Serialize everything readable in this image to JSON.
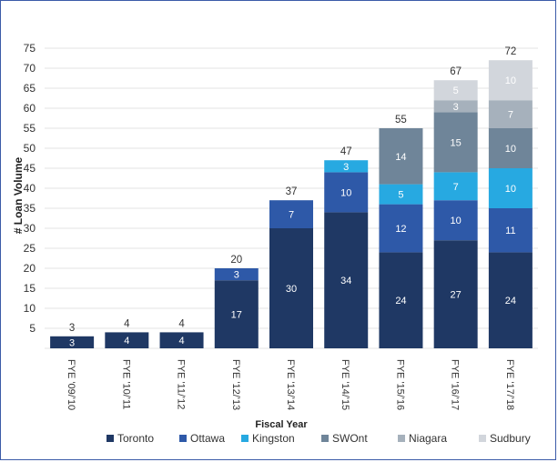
{
  "chart_data": {
    "type": "bar",
    "stacked": true,
    "title": "",
    "xlabel": "Fiscal Year",
    "ylabel": "# Loan Volume",
    "ylim": [
      0,
      75
    ],
    "yticks": [
      "",
      "5",
      "10",
      "15",
      "20",
      "25",
      "30",
      "35",
      "40",
      "45",
      "50",
      "55",
      "60",
      "65",
      "70",
      "75"
    ],
    "grid": true,
    "legend_position": "bottom",
    "categories": [
      "FYE '09/'10",
      "FYE '10/'11",
      "FYE '11/'12",
      "FYE '12/'13",
      "FYE '13/'14",
      "FYE '14/'15",
      "FYE '15/'16",
      "FYE '16/'17",
      "FYE '17/'18"
    ],
    "series": [
      {
        "name": "Toronto",
        "color": "#1f3864",
        "values": [
          3,
          4,
          4,
          17,
          30,
          34,
          24,
          27,
          24
        ]
      },
      {
        "name": "Ottawa",
        "color": "#2e59a8",
        "values": [
          0,
          0,
          0,
          3,
          7,
          10,
          12,
          10,
          11
        ]
      },
      {
        "name": "Kingston",
        "color": "#27a9e1",
        "values": [
          0,
          0,
          0,
          0,
          0,
          3,
          5,
          7,
          10
        ]
      },
      {
        "name": "SWOnt",
        "color": "#6f8599",
        "values": [
          0,
          0,
          0,
          0,
          0,
          0,
          14,
          15,
          10
        ]
      },
      {
        "name": "Niagara",
        "color": "#a6b1bc",
        "values": [
          0,
          0,
          0,
          0,
          0,
          0,
          0,
          3,
          7
        ]
      },
      {
        "name": "Sudbury",
        "color": "#d2d6dc",
        "values": [
          0,
          0,
          0,
          0,
          0,
          0,
          0,
          5,
          10
        ]
      }
    ],
    "segment_labels": [
      [
        "3",
        "",
        "",
        "",
        "",
        ""
      ],
      [
        "4",
        "",
        "",
        "",
        "",
        ""
      ],
      [
        "4",
        "",
        "",
        "",
        "",
        ""
      ],
      [
        "17",
        "3",
        "",
        "",
        "",
        ""
      ],
      [
        "30",
        "7",
        "",
        "",
        "",
        ""
      ],
      [
        "34",
        "10",
        "3",
        "",
        "",
        ""
      ],
      [
        "24",
        "12",
        "5",
        "14",
        "",
        ""
      ],
      [
        "27",
        "10",
        "7",
        "15",
        "3",
        "5"
      ],
      [
        "24",
        "11",
        "10",
        "10",
        "7",
        "10"
      ]
    ],
    "totals": [
      "3",
      "4",
      "4",
      "20",
      "37",
      "47",
      "55",
      "67",
      "72"
    ]
  }
}
